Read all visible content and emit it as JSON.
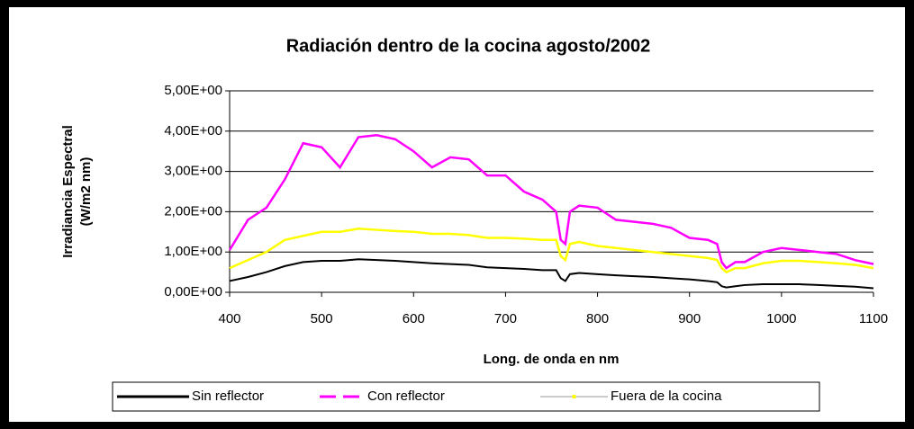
{
  "chart_data": {
    "type": "line",
    "title": "Radiación dentro de la cocina agosto/2002",
    "y_label": [
      "Irradiancia Espectral",
      "(W/m2 nm)"
    ],
    "x_label": "Long. de onda en nm",
    "x": [
      400,
      420,
      440,
      460,
      480,
      500,
      520,
      540,
      560,
      580,
      600,
      620,
      640,
      660,
      680,
      700,
      720,
      740,
      755,
      760,
      765,
      770,
      780,
      800,
      820,
      840,
      860,
      880,
      900,
      920,
      930,
      935,
      940,
      950,
      960,
      980,
      1000,
      1020,
      1040,
      1060,
      1080,
      1100
    ],
    "series": [
      {
        "name": "Sin reflector",
        "color": "#000000",
        "values": [
          0.28,
          0.38,
          0.5,
          0.65,
          0.75,
          0.78,
          0.78,
          0.82,
          0.8,
          0.78,
          0.75,
          0.72,
          0.7,
          0.68,
          0.62,
          0.6,
          0.58,
          0.55,
          0.55,
          0.35,
          0.28,
          0.45,
          0.48,
          0.45,
          0.42,
          0.4,
          0.38,
          0.35,
          0.32,
          0.28,
          0.25,
          0.15,
          0.12,
          0.15,
          0.18,
          0.2,
          0.2,
          0.2,
          0.18,
          0.16,
          0.14,
          0.1
        ]
      },
      {
        "name": "Con reflector",
        "color": "#ff00ff",
        "values": [
          1.05,
          1.8,
          2.1,
          2.8,
          3.7,
          3.6,
          3.1,
          3.85,
          3.9,
          3.8,
          3.5,
          3.1,
          3.35,
          3.3,
          2.9,
          2.9,
          2.5,
          2.3,
          2.0,
          1.3,
          1.2,
          2.0,
          2.15,
          2.1,
          1.8,
          1.75,
          1.7,
          1.6,
          1.35,
          1.3,
          1.2,
          0.75,
          0.6,
          0.75,
          0.75,
          1.0,
          1.1,
          1.05,
          1.0,
          0.95,
          0.8,
          0.7
        ]
      },
      {
        "name": "Fuera de la cocina",
        "color": "#ffff00",
        "values": [
          0.6,
          0.8,
          1.0,
          1.3,
          1.4,
          1.5,
          1.5,
          1.58,
          1.55,
          1.52,
          1.5,
          1.45,
          1.45,
          1.42,
          1.35,
          1.35,
          1.33,
          1.3,
          1.3,
          0.9,
          0.8,
          1.2,
          1.25,
          1.15,
          1.1,
          1.05,
          1.0,
          0.95,
          0.9,
          0.85,
          0.8,
          0.6,
          0.5,
          0.6,
          0.6,
          0.72,
          0.78,
          0.78,
          0.75,
          0.72,
          0.68,
          0.6
        ]
      }
    ],
    "xlim": [
      400,
      1100
    ],
    "xticks": [
      400,
      500,
      600,
      700,
      800,
      900,
      1000,
      1100
    ],
    "ylim": [
      0,
      5
    ],
    "yticks": [
      {
        "value": 0,
        "label": "0,00E+00"
      },
      {
        "value": 1,
        "label": "1,00E+00"
      },
      {
        "value": 2,
        "label": "2,00E+00"
      },
      {
        "value": 3,
        "label": "3,00E+00"
      },
      {
        "value": 4,
        "label": "4,00E+00"
      },
      {
        "value": 5,
        "label": "5,00E+00"
      }
    ],
    "grid": true,
    "legend": "bottom"
  }
}
